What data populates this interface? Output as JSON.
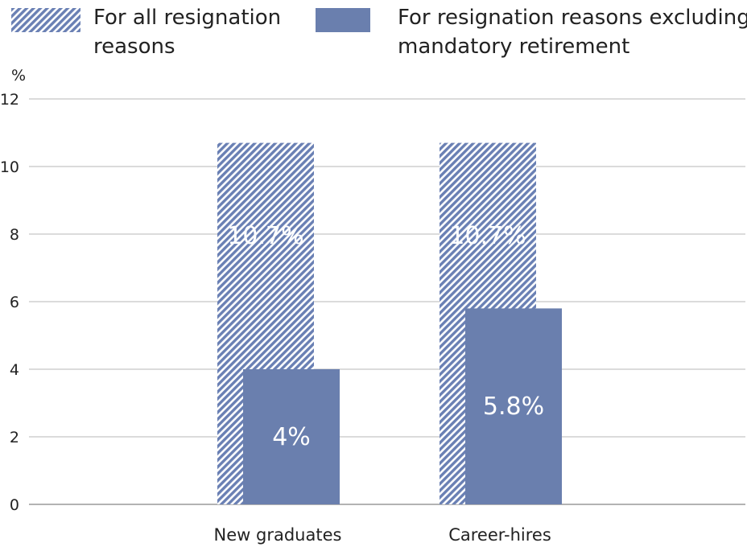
{
  "chart_data": {
    "type": "bar",
    "title": "",
    "ylabel": "%",
    "xlabel": "",
    "ylim": [
      0,
      12
    ],
    "yticks": [
      0,
      2,
      4,
      6,
      8,
      10,
      12
    ],
    "grid": true,
    "legend_position": "top",
    "categories": [
      "New graduates",
      "Career-hires"
    ],
    "series": [
      {
        "name": "For all resignation reasons",
        "values": [
          10.7,
          10.7
        ],
        "data_labels": [
          "10.7%",
          "10.7%"
        ],
        "color": "#6a80b4",
        "pattern": "hatched"
      },
      {
        "name": "For resignation reasons excluding mandatory retirement",
        "values": [
          4,
          5.8
        ],
        "data_labels": [
          "4%",
          "5.8%"
        ],
        "color": "#6a7fae",
        "pattern": "solid"
      }
    ]
  }
}
